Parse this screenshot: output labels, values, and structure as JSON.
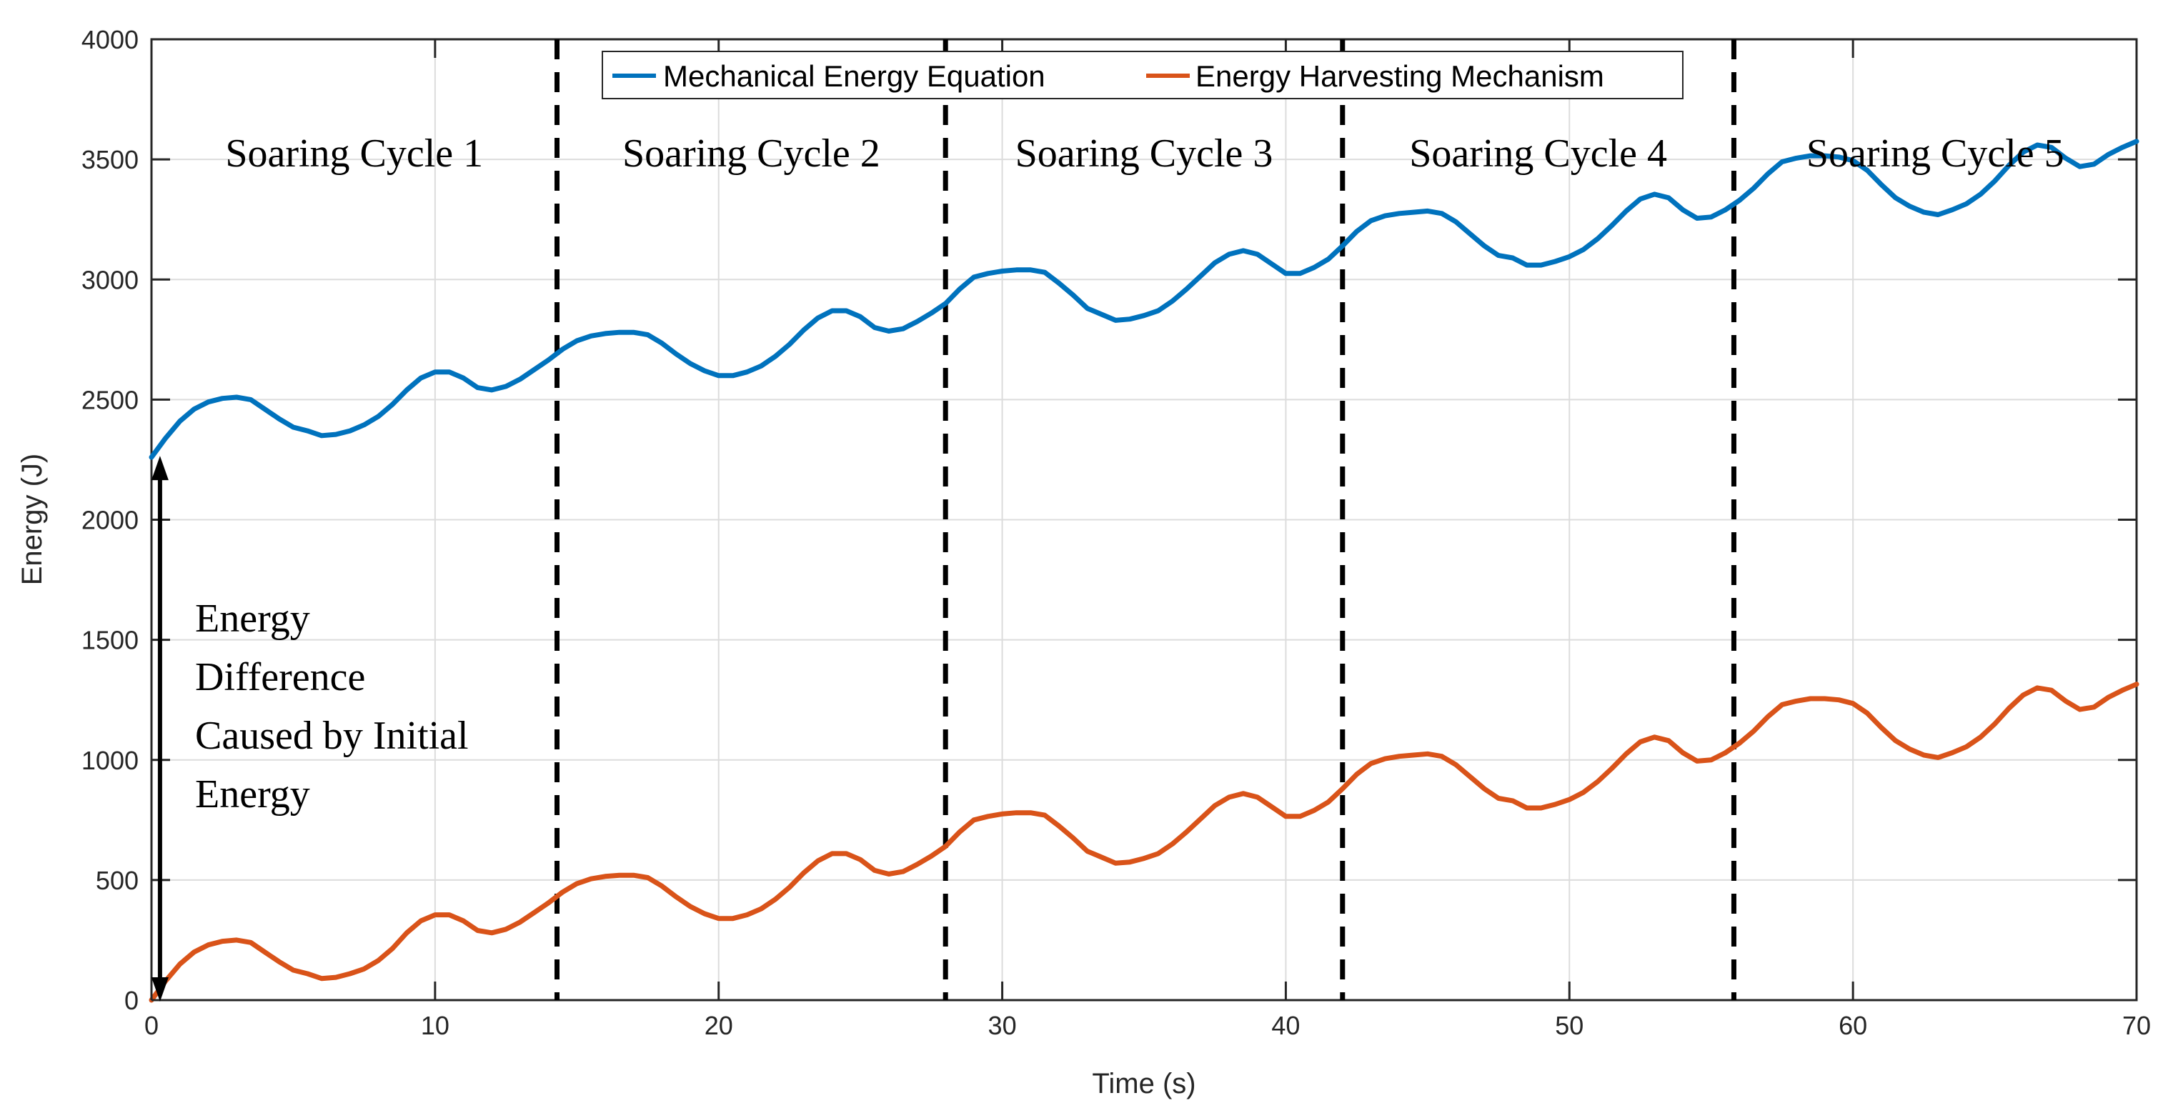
{
  "chart_data": {
    "type": "line",
    "title": "",
    "xlabel": "Time (s)",
    "ylabel": "Energy (J)",
    "xlim": [
      0,
      70
    ],
    "ylim": [
      0,
      4000
    ],
    "xticks": [
      0,
      10,
      20,
      30,
      40,
      50,
      60,
      70
    ],
    "yticks": [
      0,
      500,
      1000,
      1500,
      2000,
      2500,
      3000,
      3500,
      4000
    ],
    "grid": true,
    "legend_position": "top-center",
    "series": [
      {
        "name": "Mechanical Energy Equation",
        "color": "#0072BD",
        "x": [
          0,
          0.5,
          1,
          1.5,
          2,
          2.5,
          3,
          3.5,
          4,
          4.5,
          5,
          5.5,
          6,
          6.5,
          7,
          7.5,
          8,
          8.5,
          9,
          9.5,
          10,
          10.5,
          11,
          11.5,
          12,
          12.5,
          13,
          13.5,
          14,
          14.5,
          15,
          15.5,
          16,
          16.5,
          17,
          17.5,
          18,
          18.5,
          19,
          19.5,
          20,
          20.5,
          21,
          21.5,
          22,
          22.5,
          23,
          23.5,
          24,
          24.5,
          25,
          25.5,
          26,
          26.5,
          27,
          27.5,
          28,
          28.5,
          29,
          29.5,
          30,
          30.5,
          31,
          31.5,
          32,
          32.5,
          33,
          33.5,
          34,
          34.5,
          35,
          35.5,
          36,
          36.5,
          37,
          37.5,
          38,
          38.5,
          39,
          39.5,
          40,
          40.5,
          41,
          41.5,
          42,
          42.5,
          43,
          43.5,
          44,
          44.5,
          45,
          45.5,
          46,
          46.5,
          47,
          47.5,
          48,
          48.5,
          49,
          49.5,
          50,
          50.5,
          51,
          51.5,
          52,
          52.5,
          53,
          53.5,
          54,
          54.5,
          55,
          55.5,
          56,
          56.5,
          57,
          57.5,
          58,
          58.5,
          59,
          59.5,
          60,
          60.5,
          61,
          61.5,
          62,
          62.5,
          63,
          63.5,
          64,
          64.5,
          65,
          65.5,
          66,
          66.5,
          67,
          67.5,
          68,
          68.5,
          69,
          69.5,
          70
        ],
        "values": [
          2260,
          2340,
          2410,
          2460,
          2490,
          2505,
          2510,
          2500,
          2460,
          2420,
          2385,
          2370,
          2350,
          2355,
          2370,
          2395,
          2430,
          2480,
          2540,
          2590,
          2615,
          2615,
          2590,
          2550,
          2540,
          2555,
          2585,
          2625,
          2665,
          2710,
          2745,
          2765,
          2775,
          2780,
          2780,
          2770,
          2735,
          2690,
          2650,
          2620,
          2600,
          2600,
          2615,
          2640,
          2680,
          2730,
          2790,
          2840,
          2870,
          2870,
          2845,
          2800,
          2785,
          2795,
          2825,
          2860,
          2900,
          2960,
          3010,
          3025,
          3035,
          3040,
          3040,
          3030,
          2985,
          2935,
          2880,
          2855,
          2830,
          2835,
          2850,
          2870,
          2910,
          2960,
          3015,
          3070,
          3105,
          3120,
          3105,
          3065,
          3025,
          3025,
          3050,
          3085,
          3140,
          3200,
          3245,
          3265,
          3275,
          3280,
          3285,
          3275,
          3240,
          3190,
          3140,
          3100,
          3090,
          3060,
          3060,
          3075,
          3095,
          3125,
          3170,
          3225,
          3285,
          3335,
          3355,
          3340,
          3290,
          3255,
          3260,
          3290,
          3330,
          3380,
          3440,
          3490,
          3505,
          3515,
          3515,
          3510,
          3495,
          3455,
          3395,
          3340,
          3305,
          3280,
          3270,
          3290,
          3315,
          3355,
          3410,
          3475,
          3530,
          3560,
          3550,
          3505,
          3470,
          3480,
          3520,
          3550,
          3575
        ]
      },
      {
        "name": "Energy Harvesting Mechanism",
        "color": "#D95319",
        "x": [
          0,
          0.5,
          1,
          1.5,
          2,
          2.5,
          3,
          3.5,
          4,
          4.5,
          5,
          5.5,
          6,
          6.5,
          7,
          7.5,
          8,
          8.5,
          9,
          9.5,
          10,
          10.5,
          11,
          11.5,
          12,
          12.5,
          13,
          13.5,
          14,
          14.5,
          15,
          15.5,
          16,
          16.5,
          17,
          17.5,
          18,
          18.5,
          19,
          19.5,
          20,
          20.5,
          21,
          21.5,
          22,
          22.5,
          23,
          23.5,
          24,
          24.5,
          25,
          25.5,
          26,
          26.5,
          27,
          27.5,
          28,
          28.5,
          29,
          29.5,
          30,
          30.5,
          31,
          31.5,
          32,
          32.5,
          33,
          33.5,
          34,
          34.5,
          35,
          35.5,
          36,
          36.5,
          37,
          37.5,
          38,
          38.5,
          39,
          39.5,
          40,
          40.5,
          41,
          41.5,
          42,
          42.5,
          43,
          43.5,
          44,
          44.5,
          45,
          45.5,
          46,
          46.5,
          47,
          47.5,
          48,
          48.5,
          49,
          49.5,
          50,
          50.5,
          51,
          51.5,
          52,
          52.5,
          53,
          53.5,
          54,
          54.5,
          55,
          55.5,
          56,
          56.5,
          57,
          57.5,
          58,
          58.5,
          59,
          59.5,
          60,
          60.5,
          61,
          61.5,
          62,
          62.5,
          63,
          63.5,
          64,
          64.5,
          65,
          65.5,
          66,
          66.5,
          67,
          67.5,
          68,
          68.5,
          69,
          69.5,
          70
        ],
        "values": [
          0,
          80,
          150,
          200,
          230,
          245,
          250,
          240,
          200,
          160,
          125,
          110,
          90,
          95,
          110,
          130,
          165,
          215,
          280,
          330,
          355,
          355,
          330,
          290,
          280,
          295,
          325,
          365,
          405,
          450,
          485,
          505,
          515,
          520,
          520,
          510,
          475,
          430,
          390,
          360,
          340,
          340,
          355,
          380,
          420,
          470,
          530,
          580,
          610,
          610,
          585,
          540,
          525,
          535,
          565,
          600,
          640,
          700,
          750,
          765,
          775,
          780,
          780,
          770,
          725,
          675,
          620,
          595,
          570,
          575,
          590,
          610,
          650,
          700,
          755,
          810,
          845,
          860,
          845,
          805,
          765,
          765,
          790,
          825,
          880,
          940,
          985,
          1005,
          1015,
          1020,
          1025,
          1015,
          980,
          930,
          880,
          840,
          830,
          800,
          800,
          815,
          835,
          865,
          910,
          965,
          1025,
          1075,
          1095,
          1080,
          1030,
          995,
          1000,
          1030,
          1070,
          1120,
          1180,
          1230,
          1245,
          1255,
          1255,
          1250,
          1235,
          1195,
          1135,
          1080,
          1045,
          1020,
          1010,
          1030,
          1055,
          1095,
          1150,
          1215,
          1270,
          1300,
          1290,
          1245,
          1210,
          1220,
          1260,
          1290,
          1315
        ]
      }
    ],
    "dividers_x": [
      14.3,
      28,
      42,
      55.8
    ],
    "cycle_labels": [
      "Soaring Cycle 1",
      "Soaring Cycle 2",
      "Soaring Cycle 3",
      "Soaring Cycle 4",
      "Soaring Cycle 5"
    ],
    "annotation": {
      "lines": [
        "Energy",
        "Difference",
        "Caused by Initial",
        "Energy"
      ],
      "arrow_x": 0.3,
      "arrow_y_from": 0,
      "arrow_y_to": 2260
    }
  }
}
